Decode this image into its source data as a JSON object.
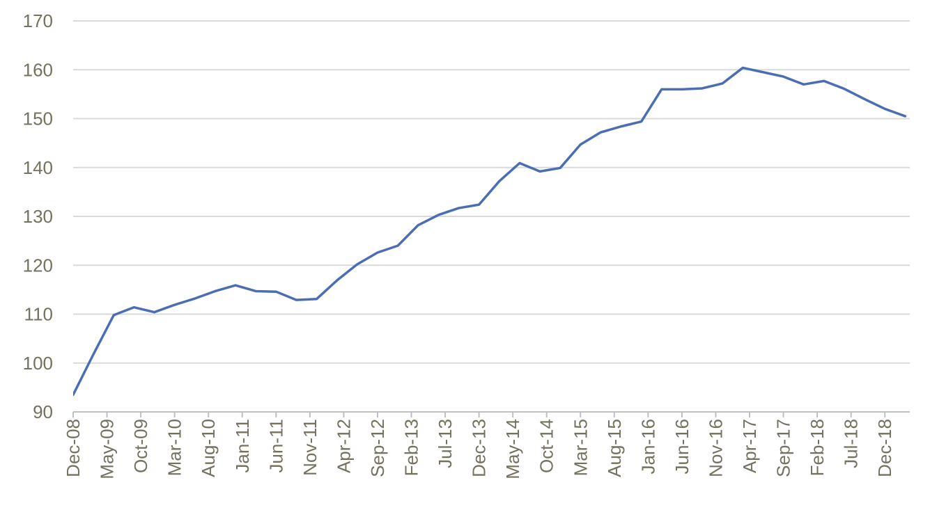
{
  "chart_data": {
    "type": "line",
    "title": "",
    "xlabel": "",
    "ylabel": "",
    "ylim": [
      90,
      170
    ],
    "yticks": [
      90,
      100,
      110,
      120,
      130,
      140,
      150,
      160,
      170
    ],
    "grid": true,
    "legend": "none",
    "line_color": "#4a6db3",
    "grid_color": "#d9d9d9",
    "tick_label_color": "#75715f",
    "x_tick_labels": [
      "Dec-08",
      "May-09",
      "Oct-09",
      "Mar-10",
      "Aug-10",
      "Jan-11",
      "Jun-11",
      "Nov-11",
      "Apr-12",
      "Sep-12",
      "Feb-13",
      "Jul-13",
      "Dec-13",
      "May-14",
      "Oct-14",
      "Mar-15",
      "Aug-15",
      "Jan-16",
      "Jun-16",
      "Nov-16",
      "Apr-17",
      "Sep-17",
      "Feb-18",
      "Jul-18",
      "Dec-18"
    ],
    "x": [
      "2008-12",
      "2009-03",
      "2009-06",
      "2009-09",
      "2009-12",
      "2010-03",
      "2010-06",
      "2010-09",
      "2010-12",
      "2011-03",
      "2011-06",
      "2011-09",
      "2011-12",
      "2012-03",
      "2012-06",
      "2012-09",
      "2012-12",
      "2013-03",
      "2013-06",
      "2013-09",
      "2013-12",
      "2014-03",
      "2014-06",
      "2014-09",
      "2014-12",
      "2015-03",
      "2015-06",
      "2015-09",
      "2015-12",
      "2016-03",
      "2016-06",
      "2016-09",
      "2016-12",
      "2017-03",
      "2017-06",
      "2017-09",
      "2017-12",
      "2018-03",
      "2018-06",
      "2018-09",
      "2018-12",
      "2019-03"
    ],
    "series": [
      {
        "values": [
          93.5,
          101.8,
          109.8,
          111.4,
          110.4,
          111.9,
          113.2,
          114.7,
          115.9,
          114.7,
          114.6,
          112.9,
          113.1,
          116.9,
          120.2,
          122.6,
          124.0,
          128.2,
          130.3,
          131.7,
          132.4,
          137.2,
          140.9,
          139.2,
          139.9,
          144.7,
          147.2,
          148.4,
          149.4,
          156.0,
          156.0,
          156.2,
          157.2,
          160.4,
          159.5,
          158.6,
          157.0,
          157.7,
          156.1,
          154.0,
          152.0,
          150.5
        ]
      }
    ]
  }
}
